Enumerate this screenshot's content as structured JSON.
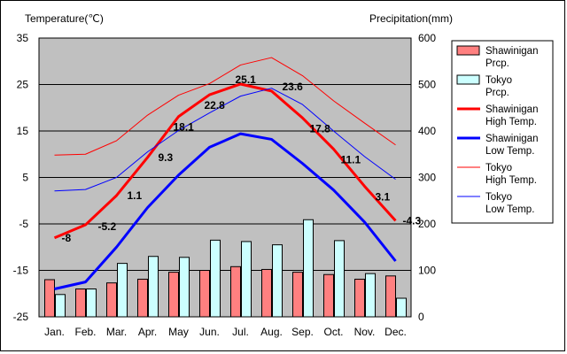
{
  "chart_data": {
    "type": "bar",
    "title": "",
    "y_left_label": "Temperature(℃)",
    "y_right_label": "Precipitation(mm)",
    "categories": [
      "Jan.",
      "Feb.",
      "Mar.",
      "Apr.",
      "May",
      "Jun.",
      "Jul.",
      "Aug.",
      "Sep.",
      "Oct.",
      "Nov.",
      "Dec."
    ],
    "y_left_ticks": [
      "35",
      "25",
      "15",
      "5",
      "-5",
      "-15",
      "-25"
    ],
    "y_left_range": [
      -25,
      35
    ],
    "y_right_ticks": [
      "600",
      "500",
      "400",
      "300",
      "200",
      "100",
      "0"
    ],
    "y_right_range": [
      0,
      600
    ],
    "grid": true,
    "legend_position": "right",
    "bar_series": [
      {
        "name": "Shawinigan\nPrcp.",
        "axis": "right",
        "color": "#ff8080",
        "values": [
          80,
          60,
          73,
          81,
          96,
          100,
          108,
          102,
          96,
          91,
          81,
          88
        ]
      },
      {
        "name": "Tokyo\nPrcp.",
        "axis": "right",
        "color": "#ccffff",
        "values": [
          48,
          60,
          115,
          130,
          128,
          165,
          162,
          155,
          209,
          164,
          93,
          40
        ]
      }
    ],
    "line_series": [
      {
        "name": "Shawinigan\nHigh Temp.",
        "axis": "left",
        "color": "#ff0000",
        "width": 3,
        "values": [
          -8,
          -5.2,
          1.1,
          9.3,
          18.1,
          22.8,
          25.1,
          23.6,
          17.8,
          11.1,
          3.1,
          -4.3
        ]
      },
      {
        "name": "Shawinigan\nLow Temp.",
        "axis": "left",
        "color": "#0000ff",
        "width": 3,
        "values": [
          -19,
          -17.5,
          -10,
          -1.5,
          5.5,
          11.5,
          14.4,
          13.2,
          8,
          2.3,
          -4.6,
          -13
        ]
      },
      {
        "name": "Tokyo\nHigh Temp.",
        "axis": "left",
        "color": "#ff0000",
        "width": 1,
        "values": [
          9.8,
          10,
          12.9,
          18.4,
          22.7,
          25.2,
          29.2,
          30.8,
          26.9,
          21.5,
          16.7,
          12
        ]
      },
      {
        "name": "Tokyo\nLow Temp.",
        "axis": "left",
        "color": "#0000ff",
        "width": 1,
        "values": [
          2.1,
          2.4,
          5,
          10.5,
          15.1,
          18.9,
          22.5,
          24.2,
          20.7,
          15,
          9.5,
          4.6
        ]
      }
    ],
    "data_labels": [
      "-8",
      "-5.2",
      "1.1",
      "9.3",
      "18.1",
      "22.8",
      "25.1",
      "23.6",
      "17.8",
      "11.1",
      "3.1",
      "-4.3"
    ]
  }
}
